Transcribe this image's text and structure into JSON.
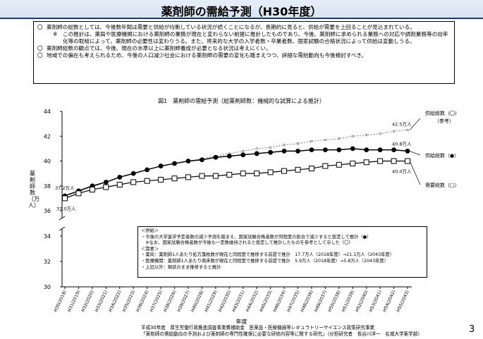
{
  "header": {
    "title": "薬剤師の需給予測（H30年度）"
  },
  "notes": [
    {
      "mark": "〇",
      "text": "薬剤師の総数としては、今後数年間は需要と供給が均衡している状況が続くことになるが、長期的に見ると、供給が需要を上回ることが見込まれている。"
    },
    {
      "mark": "※",
      "sub": true,
      "text": "この推計は、薬局や医療機関における薬剤師の業務が現在と変わらない前提に推計したものであり、今後、薬剤師に求められる業務への対応や調剤業務等の効率化等の取組によって、薬剤師の必要性は変わりうる。また、将来的な大学の入学者数・卒業者数、国家試験の合格状況によって供給は変動しうる。"
    },
    {
      "mark": "〇",
      "text": "薬剤師総数の観点では、今後、現在の水準以上に薬剤師養成が必要となる状況は考えにくい。"
    },
    {
      "mark": "〇",
      "text": "地域での偏在も考えられるため、今後の人口減少社会における薬剤師の需要の変化も踏まえつつ、詳細な需給動向も今後検討すべき。"
    }
  ],
  "figure": {
    "title": "図1　薬剤師の需給予測（総薬剤師数：機械的な試算による推計）",
    "ylabel": "薬剤師数（万人）",
    "xlabel": "年度"
  },
  "chart_data": {
    "type": "line",
    "title": "図1　薬剤師の需給予測（総薬剤師数：機械的な試算による推計）",
    "xlabel": "年度",
    "ylabel": "薬剤師数（万人）",
    "ylim": [
      30,
      44
    ],
    "yticks": [
      30,
      32,
      34,
      36,
      38,
      40,
      42,
      44
    ],
    "axis_break": [
      34,
      36
    ],
    "categories": [
      "H30(2018)",
      "H31(2019)",
      "H32(2020)",
      "H33(2021)",
      "H34(2022)",
      "H35(2023)",
      "H36(2024)",
      "H37(2025)",
      "H38(2026)",
      "H39(2027)",
      "H40(2028)",
      "H41(2029)",
      "H42(2030)",
      "H43(2031)",
      "H44(2032)",
      "H45(2033)",
      "H46(2034)",
      "H47(2035)",
      "H48(2036)",
      "H49(2037)",
      "H50(2038)",
      "H51(2039)",
      "H52(2040)",
      "H53(2041)",
      "H54(2042)",
      "H55(2043)"
    ],
    "series": [
      {
        "name": "供給総数（〇）（参考）",
        "label": "供給総数（〇）",
        "label2": "（参考）",
        "marker": "dot-small",
        "values": [
          37.2,
          37.5,
          37.9,
          38.3,
          38.7,
          39.0,
          39.3,
          39.6,
          39.8,
          40.0,
          40.2,
          40.4,
          40.6,
          40.8,
          41.0,
          41.1,
          41.3,
          41.4,
          41.6,
          41.7,
          41.8,
          42.0,
          42.1,
          42.2,
          42.4,
          42.5
        ]
      },
      {
        "name": "供給総数（●）",
        "label": "供給総数（●）",
        "marker": "filled-circle",
        "values": [
          37.2,
          37.6,
          38.0,
          38.3,
          38.7,
          39.0,
          39.3,
          39.6,
          39.8,
          40.0,
          40.1,
          40.3,
          40.4,
          40.5,
          40.6,
          40.7,
          40.8,
          40.8,
          40.9,
          40.9,
          40.9,
          41.0,
          40.9,
          40.9,
          40.9,
          40.8
        ]
      },
      {
        "name": "需要総数（□）",
        "label": "需要総数（□）",
        "marker": "open-square",
        "values": [
          37.0,
          37.4,
          37.7,
          37.9,
          38.1,
          38.3,
          38.4,
          38.5,
          38.6,
          38.7,
          38.8,
          38.8,
          38.9,
          39.0,
          39.0,
          39.1,
          39.2,
          39.3,
          39.4,
          39.6,
          39.7,
          39.8,
          39.9,
          40.0,
          40.0,
          40.0
        ]
      }
    ],
    "annotations": [
      "37.2万人",
      "37.0万人",
      "42.5万人",
      "40.8万人",
      "40.0万人"
    ]
  },
  "legend": {
    "lines": [
      "＜供給＞",
      "・今後の大学進学予定者数の減少予測を踏まえ、国家試験合格者数が同程度の割合で減少すると仮定して推計（●）",
      "　※なお、国家試験合格者数が今後も一定数維持されると仮定して推計したものを参考として示した（〇）",
      "＜需要＞",
      "・薬局：薬剤師1人あたり処方箋枚数が現在と同程度で推移する前提で推計　17.7万人（2018年度）→21.1万人（2043年度）",
      "・医療機関：薬剤師1人あたり病床数が現在と同程度で推移する前提で推計　5.9万人（2018年度）→5.8万人（2043年度）",
      "・上記以外：現状のまま推移すると推計"
    ]
  },
  "footer": {
    "line1": "平成30年度　厚生労働行政推進調査事業費補助金　医薬品・医療機器等レギュラトリーサイエンス政策研究事業",
    "line2": "「薬剤師の需給動向の予測および薬剤師の専門性確保に必要な研修内容等に関する研究」（分担研究者　長谷川洋一　名城大学薬学部）"
  },
  "page_number": "3"
}
